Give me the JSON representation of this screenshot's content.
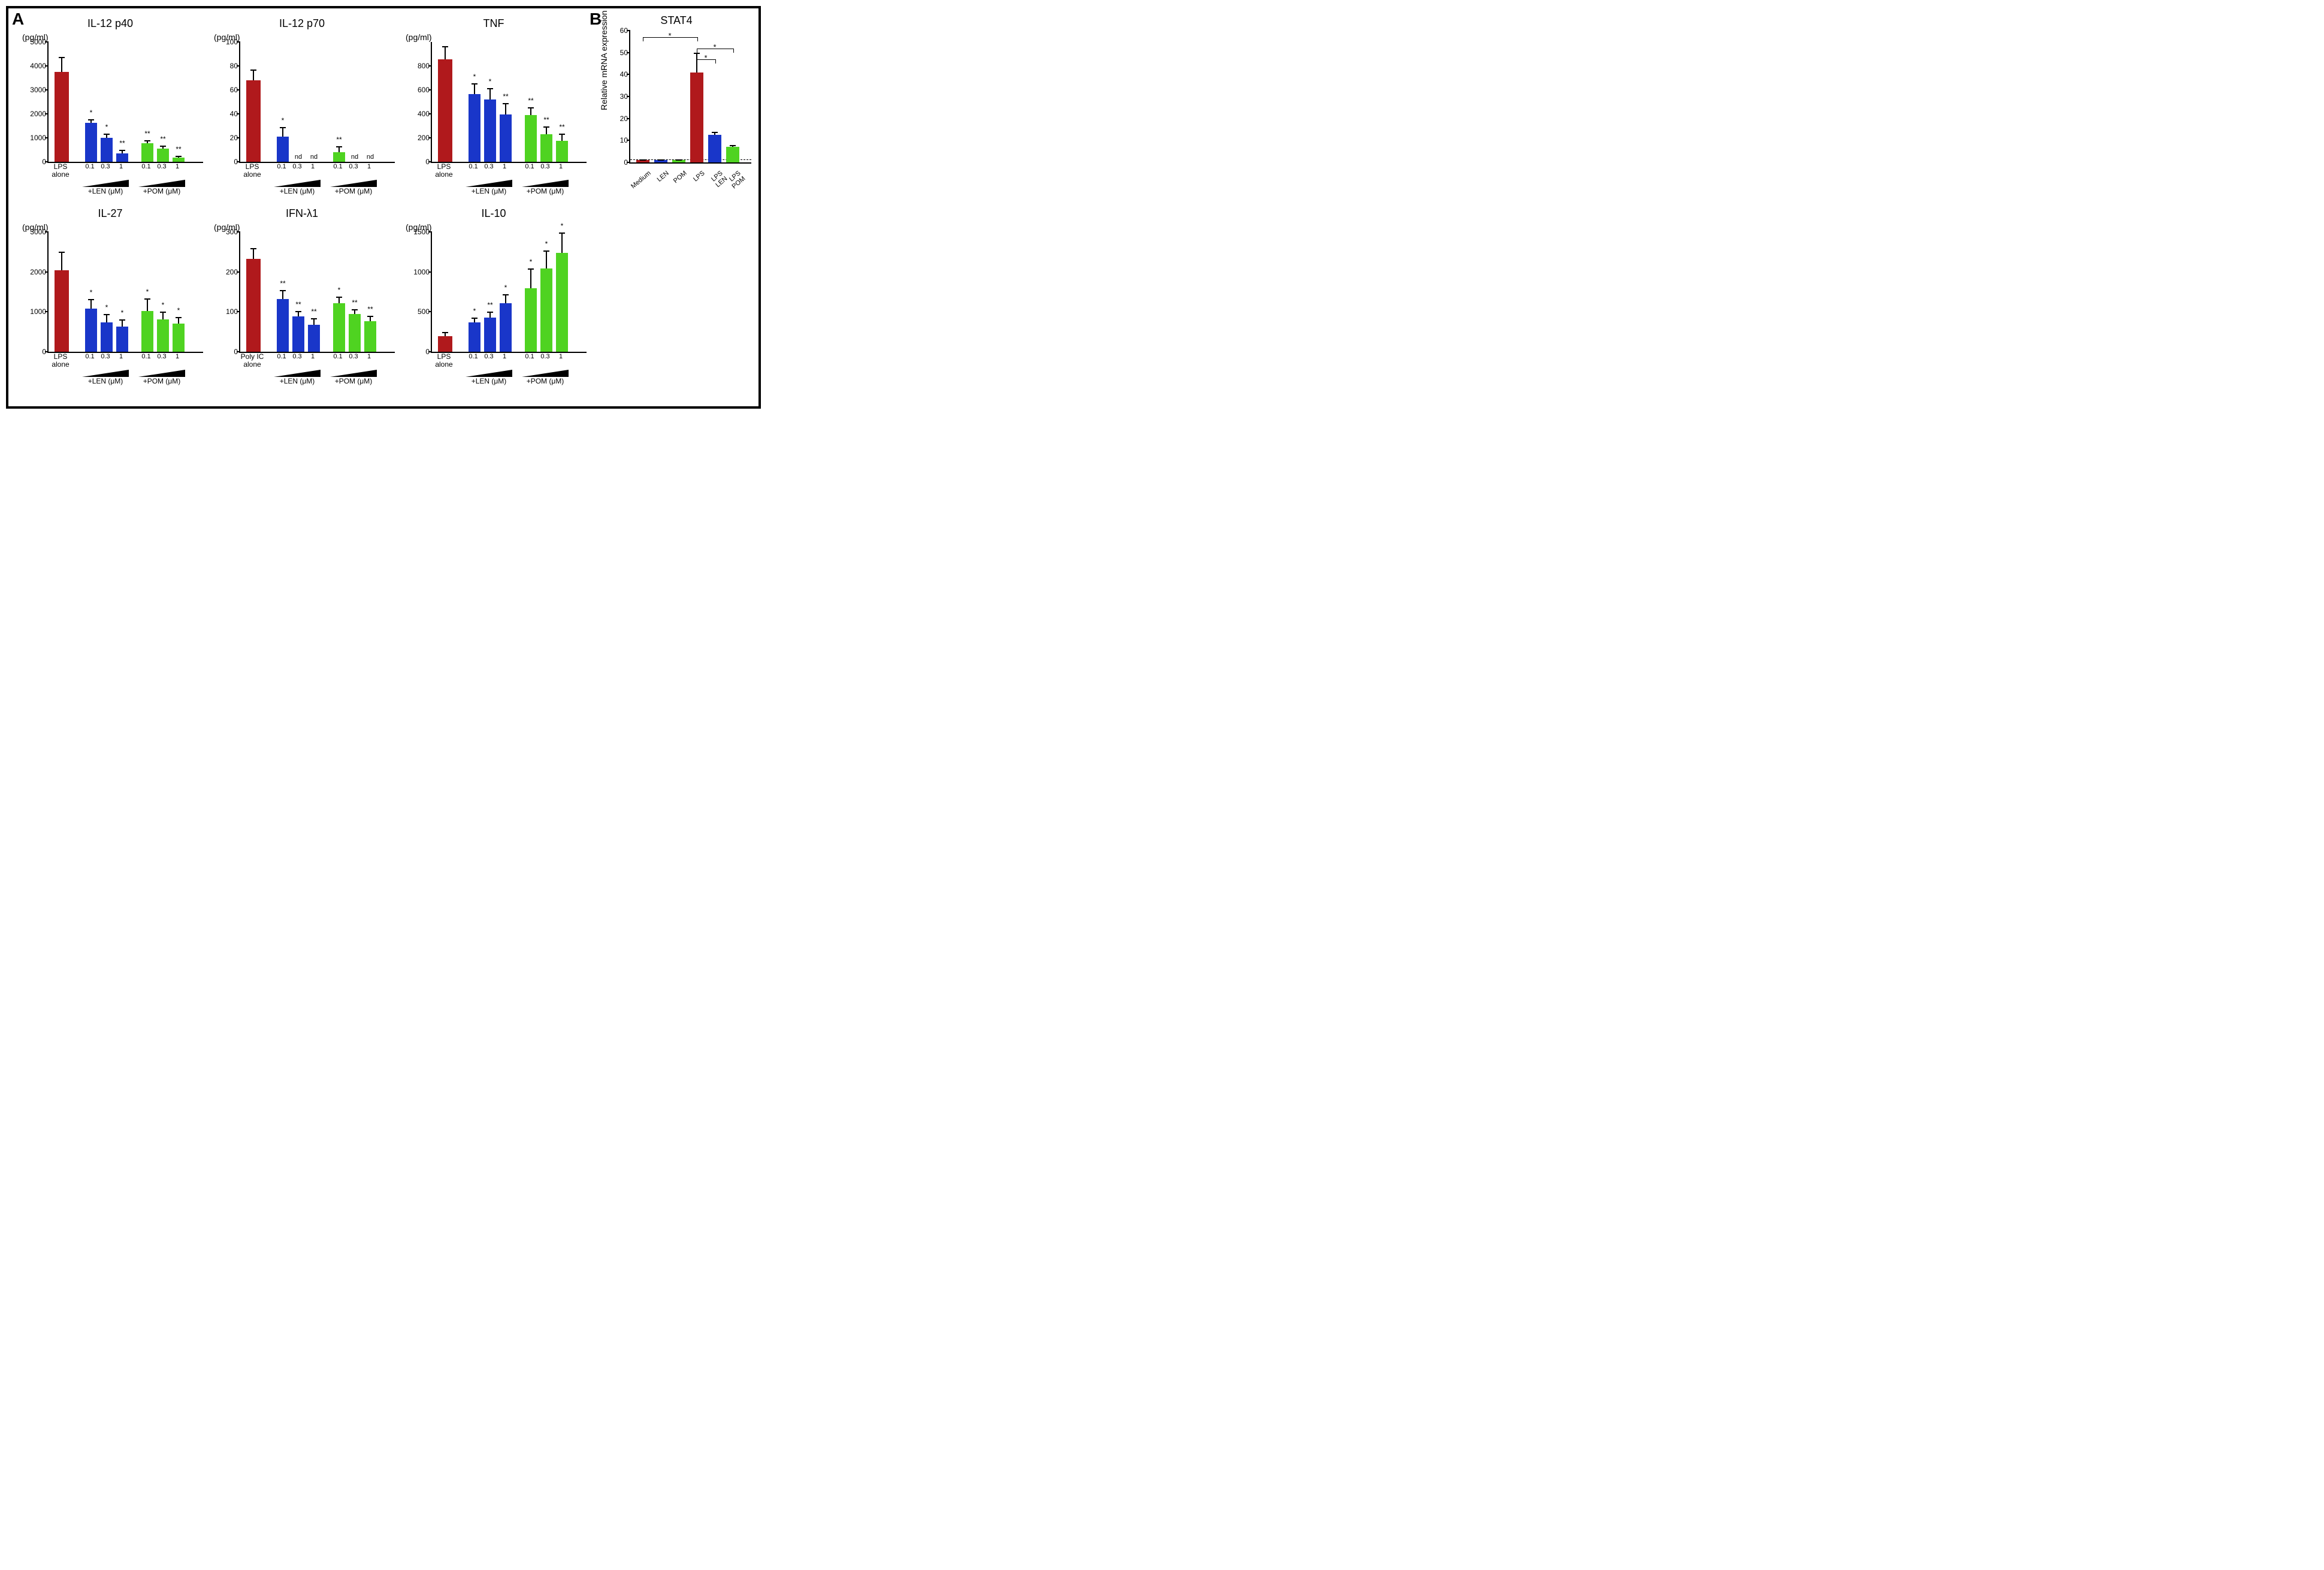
{
  "colors": {
    "lps": "#b0191c",
    "len": "#1936c9",
    "pom": "#4fd321",
    "axis": "#000000",
    "bg": "#ffffff"
  },
  "panelA": {
    "charts": [
      {
        "title": "IL-12 p40",
        "yunit": "(pg/ml)",
        "ymax": 5000,
        "yticks": [
          0,
          1000,
          2000,
          3000,
          4000,
          5000
        ],
        "control_label": "LPS\nalone",
        "bars": [
          {
            "v": 3750,
            "e": 620,
            "c": "lps",
            "sig": ""
          },
          {
            "v": 1620,
            "e": 160,
            "c": "len",
            "sig": "*"
          },
          {
            "v": 1010,
            "e": 170,
            "c": "len",
            "sig": "*"
          },
          {
            "v": 360,
            "e": 130,
            "c": "len",
            "sig": "**"
          },
          {
            "v": 780,
            "e": 130,
            "c": "pom",
            "sig": "**"
          },
          {
            "v": 550,
            "e": 120,
            "c": "pom",
            "sig": "**"
          },
          {
            "v": 180,
            "e": 80,
            "c": "pom",
            "sig": "**"
          }
        ]
      },
      {
        "title": "IL-12 p70",
        "yunit": "(pg/ml)",
        "ymax": 100,
        "yticks": [
          0,
          20,
          40,
          60,
          80,
          100
        ],
        "control_label": "LPS\nalone",
        "bars": [
          {
            "v": 68,
            "e": 9,
            "c": "lps",
            "sig": ""
          },
          {
            "v": 21,
            "e": 8,
            "c": "len",
            "sig": "*"
          },
          {
            "v": 0,
            "e": 0,
            "c": "len",
            "sig": "",
            "nd": "nd"
          },
          {
            "v": 0,
            "e": 0,
            "c": "len",
            "sig": "",
            "nd": "nd"
          },
          {
            "v": 8,
            "e": 5,
            "c": "pom",
            "sig": "**"
          },
          {
            "v": 0,
            "e": 0,
            "c": "pom",
            "sig": "",
            "nd": "nd"
          },
          {
            "v": 0,
            "e": 0,
            "c": "pom",
            "sig": "",
            "nd": "nd"
          }
        ]
      },
      {
        "title": "TNF",
        "yunit": "(pg/ml)",
        "ymax": 1000,
        "yticks": [
          0,
          200,
          400,
          600,
          800
        ],
        "control_label": "LPS\nalone",
        "bars": [
          {
            "v": 855,
            "e": 110,
            "c": "lps",
            "sig": ""
          },
          {
            "v": 565,
            "e": 90,
            "c": "len",
            "sig": "*"
          },
          {
            "v": 520,
            "e": 95,
            "c": "len",
            "sig": "*"
          },
          {
            "v": 395,
            "e": 95,
            "c": "len",
            "sig": "**"
          },
          {
            "v": 390,
            "e": 65,
            "c": "pom",
            "sig": "**"
          },
          {
            "v": 230,
            "e": 65,
            "c": "pom",
            "sig": "**"
          },
          {
            "v": 175,
            "e": 60,
            "c": "pom",
            "sig": "**"
          }
        ]
      },
      {
        "title": "IL-27",
        "yunit": "(pg/ml)",
        "ymax": 3000,
        "yticks": [
          0,
          1000,
          2000,
          3000
        ],
        "control_label": "LPS\nalone",
        "bars": [
          {
            "v": 2040,
            "e": 460,
            "c": "lps",
            "sig": ""
          },
          {
            "v": 1080,
            "e": 240,
            "c": "len",
            "sig": "*"
          },
          {
            "v": 740,
            "e": 200,
            "c": "len",
            "sig": "*"
          },
          {
            "v": 630,
            "e": 180,
            "c": "len",
            "sig": "*"
          },
          {
            "v": 1020,
            "e": 320,
            "c": "pom",
            "sig": "*"
          },
          {
            "v": 810,
            "e": 190,
            "c": "pom",
            "sig": "*"
          },
          {
            "v": 700,
            "e": 170,
            "c": "pom",
            "sig": "*"
          }
        ]
      },
      {
        "title": "IFN-λ1",
        "yunit": "(pg/ml)",
        "ymax": 300,
        "yticks": [
          0,
          100,
          200,
          300
        ],
        "control_label": "Poly IC\nalone",
        "bars": [
          {
            "v": 232,
            "e": 28,
            "c": "lps",
            "sig": ""
          },
          {
            "v": 132,
            "e": 22,
            "c": "len",
            "sig": "**"
          },
          {
            "v": 89,
            "e": 13,
            "c": "len",
            "sig": "**"
          },
          {
            "v": 67,
            "e": 17,
            "c": "len",
            "sig": "**"
          },
          {
            "v": 122,
            "e": 16,
            "c": "pom",
            "sig": "*"
          },
          {
            "v": 94,
            "e": 12,
            "c": "pom",
            "sig": "**"
          },
          {
            "v": 77,
            "e": 13,
            "c": "pom",
            "sig": "**"
          }
        ]
      },
      {
        "title": "IL-10",
        "yunit": "(pg/ml)",
        "ymax": 1500,
        "yticks": [
          0,
          500,
          1000,
          1500
        ],
        "control_label": "LPS\nalone",
        "bars": [
          {
            "v": 195,
            "e": 50,
            "c": "lps",
            "sig": ""
          },
          {
            "v": 365,
            "e": 65,
            "c": "len",
            "sig": "*"
          },
          {
            "v": 430,
            "e": 70,
            "c": "len",
            "sig": "**"
          },
          {
            "v": 605,
            "e": 115,
            "c": "len",
            "sig": "*"
          },
          {
            "v": 795,
            "e": 245,
            "c": "pom",
            "sig": "*"
          },
          {
            "v": 1045,
            "e": 225,
            "c": "pom",
            "sig": "*"
          },
          {
            "v": 1240,
            "e": 255,
            "c": "pom",
            "sig": "*"
          }
        ]
      }
    ],
    "dose_labels": [
      "0.1",
      "0.3",
      "1"
    ],
    "group1": "+LEN (µM)",
    "group2": "+POM (µM)"
  },
  "panelB": {
    "title": "STAT4",
    "ylabel": "Relative mRNA expression",
    "ymax": 60,
    "yticks": [
      0,
      10,
      20,
      30,
      40,
      50,
      60
    ],
    "dashed_at": 1,
    "bars": [
      {
        "label": "Medium",
        "v": 1,
        "e": 0.3,
        "c": "lps"
      },
      {
        "label": "LEN",
        "v": 1,
        "e": 0.3,
        "c": "len"
      },
      {
        "label": "POM",
        "v": 1,
        "e": 0.3,
        "c": "pom"
      },
      {
        "label": "LPS",
        "v": 41,
        "e": 9,
        "c": "lps"
      },
      {
        "label": "LPS LEN",
        "v": 12.5,
        "e": 1.5,
        "c": "len"
      },
      {
        "label": "LPS POM",
        "v": 7,
        "e": 1,
        "c": "pom"
      }
    ],
    "siglines": [
      {
        "from": 0,
        "to": 3,
        "y": 55,
        "star": "*"
      },
      {
        "from": 3,
        "to": 5,
        "y": 50,
        "star": "*"
      },
      {
        "from": 3,
        "to": 4,
        "y": 45,
        "star": "*"
      }
    ]
  },
  "letters": {
    "A": "A",
    "B": "B"
  }
}
